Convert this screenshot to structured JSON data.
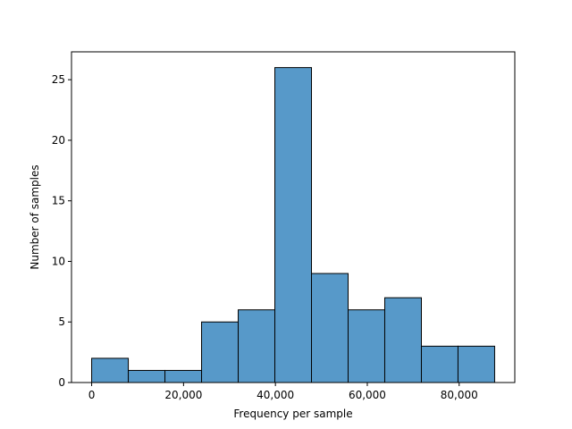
{
  "chart_data": {
    "type": "bar",
    "subtype": "histogram",
    "title": "",
    "xlabel": "Frequency per sample",
    "ylabel": "Number of samples",
    "bin_edges": [
      0,
      7975,
      15950,
      23925,
      31900,
      39875,
      47850,
      55825,
      63800,
      71775,
      79750,
      87725
    ],
    "values": [
      2,
      1,
      1,
      5,
      6,
      26,
      9,
      6,
      7,
      3,
      3
    ],
    "xlim": [
      -4390,
      92110
    ],
    "ylim": [
      0,
      27.3
    ],
    "xticks": [
      0,
      20000,
      40000,
      60000,
      80000
    ],
    "xtick_labels": [
      "0",
      "20,000",
      "40,000",
      "60,000",
      "80,000"
    ],
    "yticks": [
      0,
      5,
      10,
      15,
      20,
      25
    ],
    "ytick_labels": [
      "0",
      "5",
      "10",
      "15",
      "20",
      "25"
    ],
    "bar_color": "#5799c9",
    "edge_color": "#000000",
    "grid": false,
    "legend": "none"
  }
}
